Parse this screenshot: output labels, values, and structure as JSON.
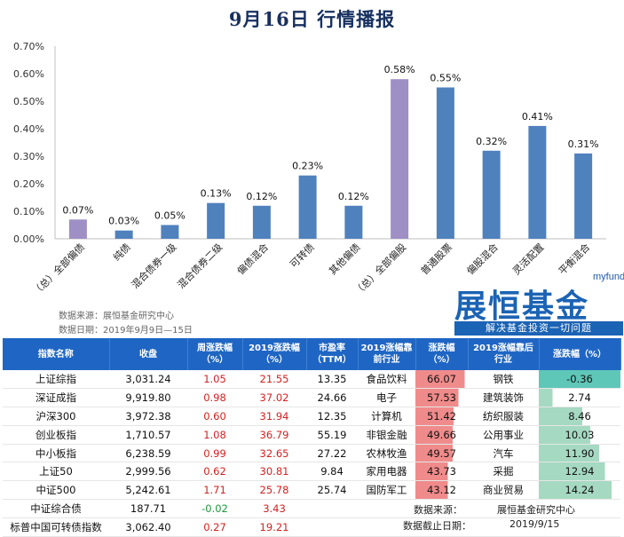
{
  "title": "9月16日  行情播报",
  "chart_data": {
    "type": "bar",
    "categories": [
      "（总）全部偏债",
      "纯债",
      "混合债券一级",
      "混合债券二级",
      "偏债混合",
      "可转债",
      "其他偏债",
      "（总）全部偏股",
      "普通股票",
      "偏股混合",
      "灵活配置",
      "平衡混合"
    ],
    "values": [
      0.07,
      0.03,
      0.05,
      0.13,
      0.12,
      0.23,
      0.12,
      0.58,
      0.55,
      0.32,
      0.41,
      0.31
    ],
    "value_labels": [
      "0.07%",
      "0.03%",
      "0.05%",
      "0.13%",
      "0.12%",
      "0.23%",
      "0.12%",
      "0.58%",
      "0.55%",
      "0.32%",
      "0.41%",
      "0.31%"
    ],
    "highlight": [
      0,
      7
    ],
    "colors": {
      "normal": "#4f81bd",
      "highlight": "#9e8fc5"
    },
    "yticks": [
      "0.00%",
      "0.10%",
      "0.20%",
      "0.30%",
      "0.40%",
      "0.50%",
      "0.60%",
      "0.70%"
    ],
    "ylim": [
      0,
      0.7
    ],
    "grid": false,
    "legend": "none"
  },
  "source": {
    "line1": "数据来源：展恒基金研究中心",
    "line2": "数据日期：2019年9月9日—15日"
  },
  "logo": {
    "small": "myfund",
    "big": "展恒基金",
    "tag": "解决基金投资一切问题"
  },
  "table": {
    "headers": [
      "指数名称",
      "收盘",
      "周涨跌幅（%）",
      "2019涨跌幅（%）",
      "市盈率（TTM）",
      "2019涨幅靠前行业",
      "涨跌幅（%）",
      "2019涨幅靠后行业",
      "涨跌幅（%）"
    ],
    "rows": [
      {
        "name": "上证综指",
        "close": "3,031.24",
        "week": "1.05",
        "ytd": "21.55",
        "pe": "13.35",
        "top": "食品饮料",
        "top_chg": "66.07",
        "bot": "钢铁",
        "bot_chg": "-0.36"
      },
      {
        "name": "深证成指",
        "close": "9,919.80",
        "week": "0.98",
        "ytd": "37.02",
        "pe": "24.66",
        "top": "电子",
        "top_chg": "57.53",
        "bot": "建筑装饰",
        "bot_chg": "2.74"
      },
      {
        "name": "沪深300",
        "close": "3,972.38",
        "week": "0.60",
        "ytd": "31.94",
        "pe": "12.35",
        "top": "计算机",
        "top_chg": "51.42",
        "bot": "纺织服装",
        "bot_chg": "8.46"
      },
      {
        "name": "创业板指",
        "close": "1,710.57",
        "week": "1.08",
        "ytd": "36.79",
        "pe": "55.19",
        "top": "非银金融",
        "top_chg": "49.66",
        "bot": "公用事业",
        "bot_chg": "10.03"
      },
      {
        "name": "中小板指",
        "close": "6,238.59",
        "week": "0.99",
        "ytd": "32.65",
        "pe": "27.22",
        "top": "农林牧渔",
        "top_chg": "49.57",
        "bot": "汽车",
        "bot_chg": "11.90"
      },
      {
        "name": "上证50",
        "close": "2,999.56",
        "week": "0.62",
        "ytd": "30.81",
        "pe": "9.84",
        "top": "家用电器",
        "top_chg": "43.73",
        "bot": "采掘",
        "bot_chg": "12.94"
      },
      {
        "name": "中证500",
        "close": "5,242.61",
        "week": "1.71",
        "ytd": "25.78",
        "pe": "25.74",
        "top": "国防军工",
        "top_chg": "43.12",
        "bot": "商业贸易",
        "bot_chg": "14.24"
      },
      {
        "name": "中证综合债",
        "close": "187.71",
        "week": "-0.02",
        "ytd": "3.43",
        "pe": "",
        "top": "",
        "top_chg": "",
        "bot": "",
        "bot_chg": ""
      },
      {
        "name": "标普中国可转债指数",
        "close": "3,062.40",
        "week": "0.27",
        "ytd": "19.21",
        "pe": "",
        "top": "",
        "top_chg": "",
        "bot": "",
        "bot_chg": ""
      }
    ]
  },
  "footer": {
    "src_label": "数据来源：",
    "src_value": "展恒基金研究中心",
    "date_label": "数据截止日期：",
    "date_value": "2019/9/15"
  },
  "colors": {
    "top_bar": "#f08b8b",
    "bot_bar_neg": "#5fc7b8",
    "bot_bar": "#a5d9c2",
    "header": "#1f66c4"
  }
}
